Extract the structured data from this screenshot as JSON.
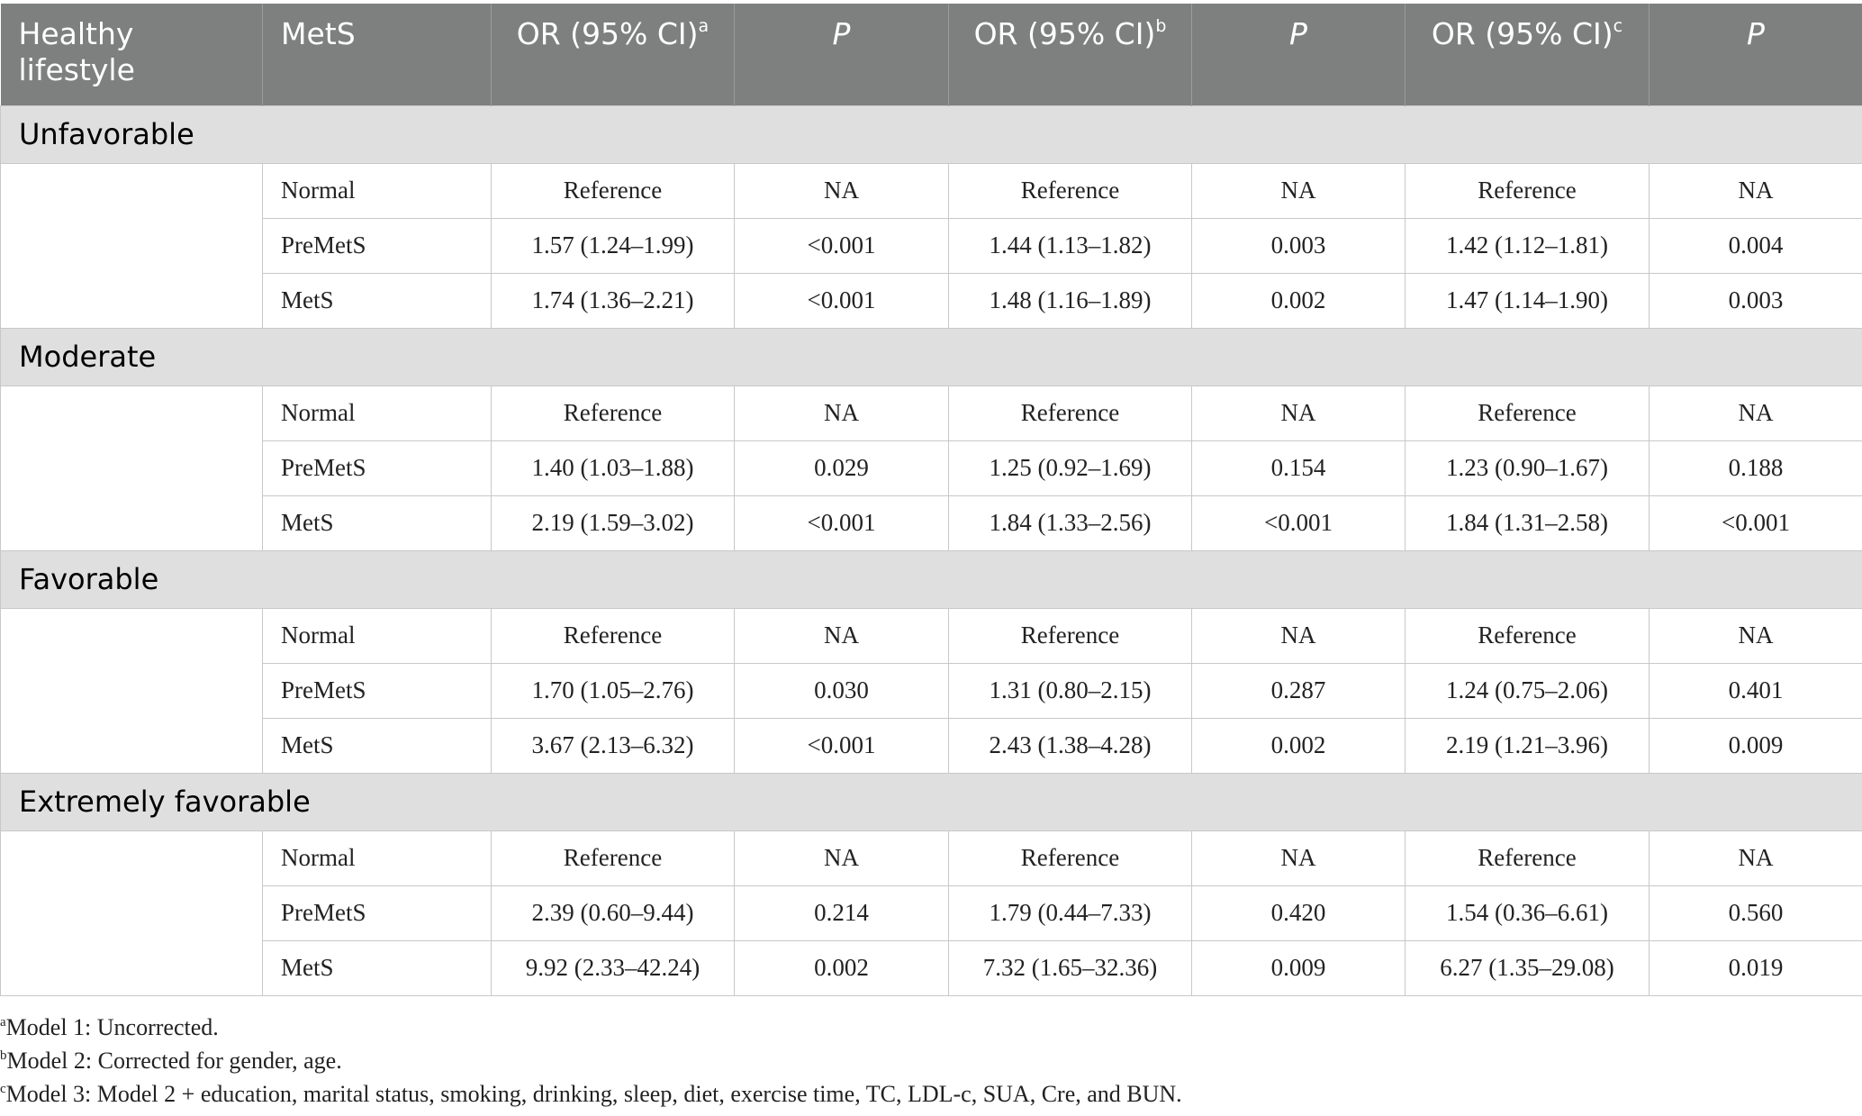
{
  "table": {
    "header": [
      {
        "text": "Healthy lifestyle"
      },
      {
        "text": "MetS"
      },
      {
        "text": "OR (95% CI)",
        "sup": "a"
      },
      {
        "text": "P"
      },
      {
        "text": "OR (95% CI)",
        "sup": "b"
      },
      {
        "text": "P"
      },
      {
        "text": "OR (95% CI)",
        "sup": "c"
      },
      {
        "text": "P"
      }
    ],
    "groups": [
      {
        "label": "Unfavorable",
        "rows": [
          [
            "Normal",
            "Reference",
            "NA",
            "Reference",
            "NA",
            "Reference",
            "NA"
          ],
          [
            "PreMetS",
            "1.57 (1.24–1.99)",
            "<0.001",
            "1.44 (1.13–1.82)",
            "0.003",
            "1.42 (1.12–1.81)",
            "0.004"
          ],
          [
            "MetS",
            "1.74 (1.36–2.21)",
            "<0.001",
            "1.48 (1.16–1.89)",
            "0.002",
            "1.47 (1.14–1.90)",
            "0.003"
          ]
        ]
      },
      {
        "label": "Moderate",
        "rows": [
          [
            "Normal",
            "Reference",
            "NA",
            "Reference",
            "NA",
            "Reference",
            "NA"
          ],
          [
            "PreMetS",
            "1.40 (1.03–1.88)",
            "0.029",
            "1.25 (0.92–1.69)",
            "0.154",
            "1.23 (0.90–1.67)",
            "0.188"
          ],
          [
            "MetS",
            "2.19 (1.59–3.02)",
            "<0.001",
            "1.84 (1.33–2.56)",
            "<0.001",
            "1.84 (1.31–2.58)",
            "<0.001"
          ]
        ]
      },
      {
        "label": "Favorable",
        "rows": [
          [
            "Normal",
            "Reference",
            "NA",
            "Reference",
            "NA",
            "Reference",
            "NA"
          ],
          [
            "PreMetS",
            "1.70 (1.05–2.76)",
            "0.030",
            "1.31 (0.80–2.15)",
            "0.287",
            "1.24 (0.75–2.06)",
            "0.401"
          ],
          [
            "MetS",
            "3.67 (2.13–6.32)",
            "<0.001",
            "2.43 (1.38–4.28)",
            "0.002",
            "2.19 (1.21–3.96)",
            "0.009"
          ]
        ]
      },
      {
        "label": "Extremely favorable",
        "rows": [
          [
            "Normal",
            "Reference",
            "NA",
            "Reference",
            "NA",
            "Reference",
            "NA"
          ],
          [
            "PreMetS",
            "2.39 (0.60–9.44)",
            "0.214",
            "1.79 (0.44–7.33)",
            "0.420",
            "1.54 (0.36–6.61)",
            "0.560"
          ],
          [
            "MetS",
            "9.92 (2.33–42.24)",
            "0.002",
            "7.32 (1.65–32.36)",
            "0.009",
            "6.27 (1.35–29.08)",
            "0.019"
          ]
        ]
      }
    ]
  },
  "footnotes": [
    {
      "mark": "a",
      "text": "Model 1: Uncorrected."
    },
    {
      "mark": "b",
      "text": "Model 2: Corrected for gender, age."
    },
    {
      "mark": "c",
      "text": "Model 3: Model 2 + education, marital status, smoking, drinking, sleep, diet, exercise time, TC, LDL-c, SUA, Cre, and BUN."
    }
  ]
}
